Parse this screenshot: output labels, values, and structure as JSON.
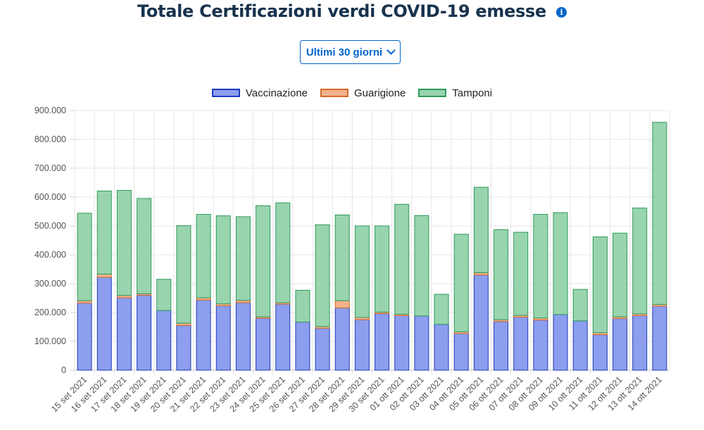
{
  "header": {
    "title": "Totale Certificazioni verdi COVID-19 emesse",
    "info_icon": "info-icon"
  },
  "controls": {
    "period_label": "Ultimi 30 giorni",
    "period_icon": "chevron-down-icon"
  },
  "colors": {
    "title": "#17324d",
    "accent": "#0066cc",
    "vaccinazione_fill": "#8c9eed",
    "vaccinazione_border": "#1c3bbd",
    "guarigione_fill": "#f1b28d",
    "guarigione_border": "#d66a2a",
    "tamponi_fill": "#98d4ae",
    "tamponi_border": "#2e9a5c"
  },
  "chart_data": {
    "type": "bar",
    "stacked": true,
    "categories": [
      "15 set 2021",
      "16 set 2021",
      "17 set 2021",
      "18 set 2021",
      "19 set 2021",
      "20 set 2021",
      "21 set 2021",
      "22 set 2021",
      "23 set 2021",
      "24 set 2021",
      "25 set 2021",
      "26 set 2021",
      "27 set 2021",
      "28 set 2021",
      "29 set 2021",
      "30 set 2021",
      "01 ott 2021",
      "02 ott 2021",
      "03 ott 2021",
      "04 ott 2021",
      "05 ott 2021",
      "06 ott 2021",
      "07 ott 2021",
      "08 ott 2021",
      "09 ott 2021",
      "10 ott 2021",
      "11 ott 2021",
      "12 ott 2021",
      "13 ott 2021",
      "14 ott 2021"
    ],
    "series": [
      {
        "name": "Vaccinazione",
        "values": [
          233000,
          322000,
          251000,
          260000,
          207000,
          155000,
          243000,
          223000,
          234000,
          180000,
          229000,
          167000,
          145000,
          216000,
          175000,
          196000,
          189000,
          188000,
          159000,
          127000,
          330000,
          169000,
          184000,
          174000,
          193000,
          171000,
          123000,
          179000,
          189000,
          222000
        ]
      },
      {
        "name": "Guarigione",
        "values": [
          8000,
          11000,
          8000,
          5000,
          0,
          8000,
          8000,
          7000,
          8000,
          5000,
          5000,
          0,
          6000,
          25000,
          8000,
          5000,
          5000,
          0,
          0,
          6000,
          8000,
          6000,
          6000,
          7000,
          0,
          0,
          7000,
          6000,
          6000,
          6000
        ]
      },
      {
        "name": "Tamponi",
        "values": [
          303000,
          288000,
          364000,
          330000,
          108000,
          338000,
          289000,
          305000,
          290000,
          385000,
          346000,
          110000,
          353000,
          297000,
          317000,
          299000,
          381000,
          348000,
          104000,
          338000,
          296000,
          312000,
          288000,
          359000,
          353000,
          109000,
          332000,
          290000,
          367000,
          631000
        ]
      }
    ],
    "ylim": [
      0,
      900000
    ],
    "yticks": [
      "0",
      "100.000",
      "200.000",
      "300.000",
      "400.000",
      "500.000",
      "600.000",
      "700.000",
      "800.000",
      "900.000"
    ],
    "grid": true,
    "legend": "top"
  }
}
